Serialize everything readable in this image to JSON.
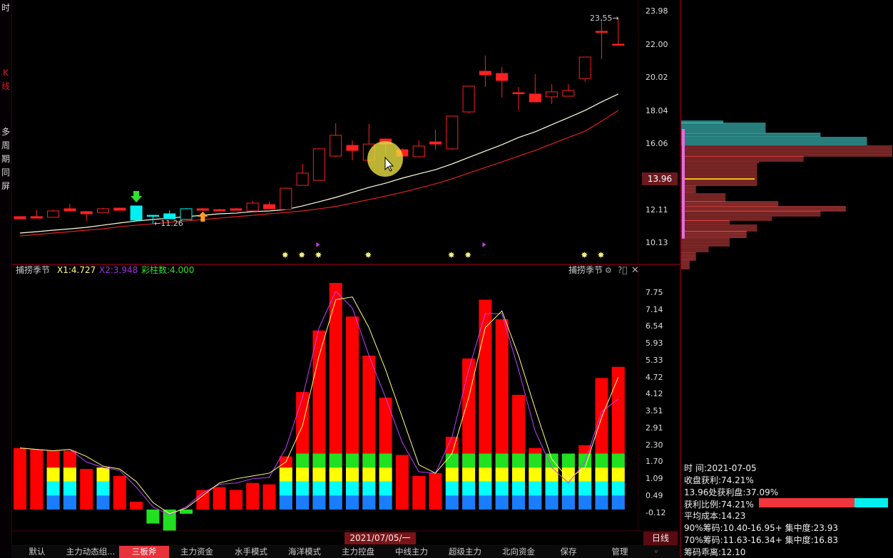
{
  "sidebar": {
    "items": [
      {
        "label": "时",
        "color": "#dddddd"
      },
      {
        "label": "K线",
        "color": "#d02030"
      },
      {
        "label": "多周期同屏",
        "color": "#dddddd"
      }
    ]
  },
  "price_chart": {
    "price_axis_ticks": [
      "23.98",
      "22.00",
      "20.02",
      "18.04",
      "16.06",
      "12.11",
      "10.13"
    ],
    "current_price_tag": "13.96",
    "high_label": "23.55",
    "low_label": "11.26",
    "colors": {
      "up": "#ff2020",
      "down": "#ff0000",
      "special": "#00f0f0",
      "ma_white": "#ffffe0",
      "ma_red": "#e02020"
    },
    "candles": [
      [
        11.71,
        11.71,
        11.58,
        11.58,
        "red"
      ],
      [
        11.71,
        12.13,
        11.62,
        11.62,
        "red"
      ],
      [
        11.67,
        12.13,
        11.67,
        12.05,
        "red"
      ],
      [
        12.18,
        12.48,
        12.05,
        12.05,
        "red"
      ],
      [
        12.01,
        12.05,
        11.45,
        11.88,
        "red"
      ],
      [
        11.96,
        12.22,
        11.96,
        12.18,
        "red"
      ],
      [
        12.22,
        12.22,
        12.09,
        12.09,
        "red"
      ],
      [
        12.35,
        12.35,
        11.5,
        11.5,
        "cyan"
      ],
      [
        11.79,
        11.79,
        11.26,
        11.75,
        "cyan"
      ],
      [
        11.88,
        12.09,
        11.58,
        11.58,
        "cyan"
      ],
      [
        11.54,
        12.22,
        11.54,
        12.18,
        "cyan"
      ],
      [
        12.18,
        12.22,
        12.05,
        12.09,
        "red"
      ],
      [
        12.13,
        12.18,
        12.05,
        12.05,
        "red"
      ],
      [
        12.18,
        12.22,
        12.09,
        12.09,
        "red"
      ],
      [
        12.05,
        12.65,
        12.05,
        12.52,
        "red"
      ],
      [
        12.43,
        12.6,
        12.18,
        12.18,
        "red"
      ],
      [
        12.13,
        13.45,
        12.13,
        13.41,
        "red"
      ],
      [
        13.58,
        14.86,
        13.58,
        14.31,
        "red"
      ],
      [
        13.88,
        15.8,
        13.88,
        15.76,
        "red"
      ],
      [
        15.33,
        17.29,
        15.29,
        16.57,
        "red"
      ],
      [
        15.97,
        16.27,
        15.08,
        15.67,
        "red"
      ],
      [
        15.08,
        17.25,
        14.9,
        16.05,
        "red"
      ],
      [
        16.35,
        16.4,
        15.5,
        16.05,
        "red"
      ],
      [
        15.71,
        15.8,
        15.3,
        15.33,
        "red"
      ],
      [
        15.29,
        16.27,
        15.25,
        15.93,
        "red"
      ],
      [
        16.18,
        16.91,
        15.71,
        16.05,
        "red"
      ],
      [
        15.76,
        17.72,
        15.7,
        17.72,
        "red"
      ],
      [
        17.97,
        19.51,
        17.9,
        19.51,
        "red"
      ],
      [
        20.4,
        21.34,
        19.46,
        20.19,
        "red"
      ],
      [
        20.27,
        20.66,
        18.82,
        19.85,
        "red"
      ],
      [
        19.12,
        19.46,
        18.06,
        19.08,
        "red"
      ],
      [
        19.04,
        20.23,
        18.57,
        18.57,
        "red"
      ],
      [
        18.87,
        19.63,
        18.44,
        19.17,
        "red"
      ],
      [
        18.91,
        19.63,
        18.91,
        19.25,
        "red"
      ],
      [
        19.97,
        21.25,
        19.76,
        21.25,
        "red"
      ],
      [
        22.79,
        23.55,
        21.13,
        22.74,
        "red"
      ],
      [
        22.02,
        23.55,
        21.98,
        21.98,
        "red"
      ]
    ],
    "ma_white": [
      10.73,
      10.81,
      10.9,
      10.98,
      11.07,
      11.2,
      11.33,
      11.45,
      11.54,
      11.62,
      11.71,
      11.79,
      11.88,
      11.92,
      12.01,
      12.05,
      12.13,
      12.35,
      12.6,
      12.86,
      13.16,
      13.46,
      13.71,
      14.01,
      14.27,
      14.52,
      14.86,
      15.25,
      15.63,
      16.01,
      16.44,
      16.78,
      17.21,
      17.63,
      18.06,
      18.57,
      19.04
    ],
    "ma_red": [
      10.56,
      10.64,
      10.73,
      10.81,
      10.9,
      10.98,
      11.11,
      11.2,
      11.28,
      11.37,
      11.45,
      11.54,
      11.62,
      11.71,
      11.79,
      11.88,
      11.96,
      12.05,
      12.18,
      12.31,
      12.52,
      12.73,
      12.94,
      13.16,
      13.41,
      13.67,
      13.97,
      14.31,
      14.65,
      14.98,
      15.33,
      15.67,
      16.05,
      16.44,
      16.82,
      17.42,
      18.06
    ],
    "star_markers": [
      16,
      17,
      18,
      21,
      26,
      27,
      34,
      35
    ],
    "flag_markers": [
      18,
      28
    ],
    "signal_sell_index": 7,
    "signal_buy_index": 11
  },
  "chip_panel": {
    "segments": [
      {
        "top": 17.42,
        "bottom": 17.29,
        "amount": 20,
        "kind": "profit"
      },
      {
        "top": 17.29,
        "bottom": 16.69,
        "amount": 40,
        "kind": "profit"
      },
      {
        "top": 16.69,
        "bottom": 16.44,
        "amount": 66,
        "kind": "profit"
      },
      {
        "top": 16.44,
        "bottom": 15.93,
        "amount": 88,
        "kind": "profit"
      },
      {
        "top": 15.93,
        "bottom": 15.29,
        "amount": 100,
        "kind": "loss"
      },
      {
        "top": 15.29,
        "bottom": 15.03,
        "amount": 58,
        "kind": "loss"
      },
      {
        "top": 15.03,
        "bottom": 14.86,
        "amount": 37,
        "kind": "loss"
      },
      {
        "top": 14.86,
        "bottom": 13.58,
        "amount": 36,
        "kind": "loss"
      },
      {
        "top": 13.58,
        "bottom": 13.07,
        "amount": 7,
        "kind": "loss"
      },
      {
        "top": 13.07,
        "bottom": 12.6,
        "amount": 21,
        "kind": "loss"
      },
      {
        "top": 12.6,
        "bottom": 12.31,
        "amount": 46,
        "kind": "loss"
      },
      {
        "top": 12.31,
        "bottom": 12.01,
        "amount": 78,
        "kind": "loss"
      },
      {
        "top": 12.01,
        "bottom": 11.67,
        "amount": 66,
        "kind": "loss"
      },
      {
        "top": 11.67,
        "bottom": 11.45,
        "amount": 43,
        "kind": "loss"
      },
      {
        "top": 11.45,
        "bottom": 11.2,
        "amount": 23,
        "kind": "loss"
      },
      {
        "top": 11.2,
        "bottom": 10.81,
        "amount": 36,
        "kind": "loss"
      },
      {
        "top": 10.81,
        "bottom": 10.39,
        "amount": 31,
        "kind": "loss"
      },
      {
        "top": 10.39,
        "bottom": 9.96,
        "amount": 23,
        "kind": "loss"
      },
      {
        "top": 9.96,
        "bottom": 9.54,
        "amount": 13,
        "kind": "loss"
      },
      {
        "top": 9.54,
        "bottom": 9.11,
        "amount": 7,
        "kind": "loss"
      },
      {
        "top": 9.11,
        "bottom": 8.56,
        "amount": 4,
        "kind": "loss"
      }
    ],
    "avg_cost_line": 13.96,
    "colors": {
      "profit": "#40c8c8",
      "loss": "#d04040",
      "avg": "#f0c020",
      "range": "#e070e0"
    },
    "info": {
      "time": "时        间:2021-07-05",
      "close_profit": "收盘获利:74.21%",
      "price_profit": "13.96处获利盘:37.09%",
      "profit_ratio": "获利比例:74.21%",
      "profit_ratio_value": 74.21,
      "avg_cost": "平均成本:14.23",
      "chips90": "90%筹码:10.40-16.95+ 集中度:23.93",
      "chips70": "70%筹码:11.63-16.34+ 集中度:16.83",
      "deviation": "筹码乖离:12.10"
    }
  },
  "indicator": {
    "name": "捕捞季节",
    "x1_label": "X1:4.727",
    "x2_label": "X2:3.948",
    "bars_label": "彩柱数:4.000",
    "right_name": "捕捞季节",
    "axis_ticks": [
      "7.75",
      "7.14",
      "6.54",
      "5.93",
      "5.33",
      "4.72",
      "4.12",
      "3.51",
      "2.91",
      "2.30",
      "1.70",
      "1.09",
      "0.49",
      "-0.12"
    ],
    "colors": {
      "x1": "#ffff80",
      "x2": "#c040ff",
      "bars": "#30e030",
      "red": "#ff0000",
      "green": "#20e020",
      "yellow": "#ffff00",
      "cyan": "#00ffff",
      "blue": "#1a7cff"
    },
    "bars": [
      2.2,
      2.15,
      2.1,
      2.1,
      1.45,
      1.5,
      1.2,
      0.28,
      -0.5,
      -0.75,
      -0.15,
      0.7,
      0.8,
      0.7,
      0.95,
      0.9,
      1.9,
      4.2,
      6.4,
      8.1,
      6.9,
      5.5,
      4.0,
      1.95,
      1.2,
      1.3,
      2.6,
      5.4,
      7.5,
      6.8,
      4.1,
      2.2,
      2.0,
      2.0,
      2.3,
      4.7,
      5.1
    ],
    "stack_levels": [
      0,
      0,
      3,
      3,
      0,
      3,
      0,
      0,
      0,
      0,
      0,
      0,
      0,
      0,
      0,
      0,
      3,
      4,
      4,
      4,
      4,
      4,
      4,
      0,
      0,
      0,
      4,
      4,
      4,
      4,
      4,
      4,
      4,
      4,
      4,
      4,
      4
    ],
    "x1": [
      2.2,
      2.15,
      2.1,
      2.15,
      1.9,
      1.55,
      1.45,
      1.0,
      0.25,
      -0.15,
      0.05,
      0.5,
      0.95,
      1.1,
      1.2,
      1.3,
      1.7,
      3.0,
      5.5,
      7.5,
      7.6,
      6.5,
      5.0,
      3.3,
      1.6,
      1.3,
      2.0,
      4.0,
      6.5,
      7.1,
      5.5,
      3.6,
      1.8,
      1.1,
      1.5,
      3.3,
      4.727
    ],
    "x2": [
      2.2,
      2.15,
      2.1,
      2.15,
      1.7,
      1.5,
      1.4,
      0.8,
      0.1,
      -0.2,
      0.1,
      0.6,
      0.9,
      0.95,
      1.1,
      1.15,
      2.2,
      4.0,
      6.5,
      7.8,
      7.2,
      5.5,
      4.0,
      2.4,
      1.35,
      1.3,
      2.6,
      5.0,
      7.0,
      7.0,
      5.0,
      2.8,
      1.5,
      0.95,
      1.7,
      3.5,
      3.948
    ]
  },
  "date_label": "2021/07/05/一",
  "period_button": "日线",
  "tabs": [
    {
      "label": "默认",
      "active": false
    },
    {
      "label": "主力动态组...",
      "active": false
    },
    {
      "label": "三板斧",
      "active": true
    },
    {
      "label": "主力资金",
      "active": false
    },
    {
      "label": "水手模式",
      "active": false
    },
    {
      "label": "海洋模式",
      "active": false
    },
    {
      "label": "主力控盘",
      "active": false
    },
    {
      "label": "中线主力",
      "active": false
    },
    {
      "label": "超级主力",
      "active": false
    },
    {
      "label": "北向资金",
      "active": false
    },
    {
      "label": "保存",
      "active": false
    },
    {
      "label": "管理",
      "active": false
    }
  ]
}
